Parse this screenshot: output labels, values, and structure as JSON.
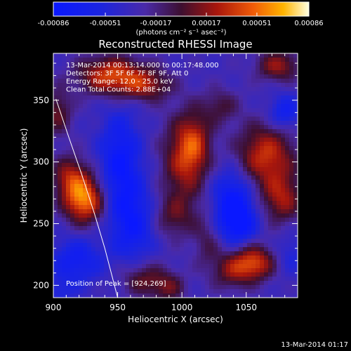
{
  "chart_data": {
    "type": "heatmap",
    "title": "Reconstructed RHESSI Image",
    "xlabel": "Heliocentric X (arcsec)",
    "ylabel": "Heliocentric Y (arcsec)",
    "xlim": [
      900,
      1090
    ],
    "ylim": [
      190,
      388
    ],
    "x_ticks": [
      900,
      950,
      1000,
      1050
    ],
    "y_ticks": [
      200,
      250,
      300,
      350
    ],
    "colorbar": {
      "tick_labels": [
        "-0.00086",
        "-0.00051",
        "-0.00017",
        "0.00017",
        "0.00051",
        "0.00086"
      ],
      "range": [
        -0.00086,
        0.00086
      ],
      "units_label": "(photons cm⁻² s⁻¹ asec⁻²)"
    },
    "annotations": [
      "13-Mar-2014 00:13:14.000 to 00:17:48.000",
      "Detectors: 3F 5F 6F 7F 8F 9F, Att 0",
      "Energy Range: 12.0 - 25.0 keV",
      "Clean    Total Counts: 2.88E+04"
    ],
    "peak_label": "Position of Peak = [924,269]",
    "peak": [
      924,
      269
    ],
    "limb_curve": [
      [
        902,
        351
      ],
      [
        912,
        320
      ],
      [
        922,
        290
      ],
      [
        932,
        258
      ],
      [
        940,
        230
      ],
      [
        947,
        202
      ],
      [
        950,
        190
      ]
    ],
    "blobs": [
      {
        "x": 945,
        "y": 370,
        "sx": 18,
        "sy": 11,
        "v": 0.0007
      },
      {
        "x": 972,
        "y": 362,
        "sx": 14,
        "sy": 9,
        "v": 0.00045
      },
      {
        "x": 1075,
        "y": 378,
        "sx": 12,
        "sy": 9,
        "v": 0.0005
      },
      {
        "x": 924,
        "y": 269,
        "sx": 11,
        "sy": 13,
        "v": 0.00086
      },
      {
        "x": 913,
        "y": 288,
        "sx": 10,
        "sy": 12,
        "v": 0.0005
      },
      {
        "x": 903,
        "y": 340,
        "sx": 8,
        "sy": 13,
        "v": 0.0004
      },
      {
        "x": 1001,
        "y": 300,
        "sx": 12,
        "sy": 26,
        "v": 0.0005
      },
      {
        "x": 1010,
        "y": 315,
        "sx": 9,
        "sy": 17,
        "v": 0.00045
      },
      {
        "x": 993,
        "y": 255,
        "sx": 12,
        "sy": 12,
        "v": 0.0003
      },
      {
        "x": 1065,
        "y": 305,
        "sx": 16,
        "sy": 18,
        "v": 0.00065
      },
      {
        "x": 1078,
        "y": 270,
        "sx": 11,
        "sy": 14,
        "v": 0.0005
      },
      {
        "x": 1056,
        "y": 218,
        "sx": 11,
        "sy": 10,
        "v": 0.0007
      },
      {
        "x": 1038,
        "y": 212,
        "sx": 10,
        "sy": 11,
        "v": 0.0004
      },
      {
        "x": 970,
        "y": 205,
        "sx": 12,
        "sy": 10,
        "v": 0.0004
      },
      {
        "x": 990,
        "y": 198,
        "sx": 9,
        "sy": 9,
        "v": 0.00035
      },
      {
        "x": 1020,
        "y": 235,
        "sx": 8,
        "sy": 16,
        "v": 0.00025
      },
      {
        "x": 952,
        "y": 300,
        "sx": 11,
        "sy": 28,
        "v": -0.0005
      },
      {
        "x": 962,
        "y": 250,
        "sx": 12,
        "sy": 22,
        "v": -0.00045
      },
      {
        "x": 1040,
        "y": 265,
        "sx": 11,
        "sy": 20,
        "v": -0.0006
      },
      {
        "x": 1046,
        "y": 250,
        "sx": 9,
        "sy": 10,
        "v": -0.0003
      },
      {
        "x": 918,
        "y": 220,
        "sx": 14,
        "sy": 13,
        "v": -0.0004
      },
      {
        "x": 1080,
        "y": 340,
        "sx": 9,
        "sy": 10,
        "v": -0.0004
      },
      {
        "x": 1085,
        "y": 225,
        "sx": 8,
        "sy": 12,
        "v": -0.0002
      },
      {
        "x": 905,
        "y": 195,
        "sx": 8,
        "sy": 8,
        "v": -0.0002
      },
      {
        "x": 1030,
        "y": 345,
        "sx": 10,
        "sy": 10,
        "v": 0.0003
      }
    ]
  },
  "footer_timestamp": "13-Mar-2014 01:17"
}
